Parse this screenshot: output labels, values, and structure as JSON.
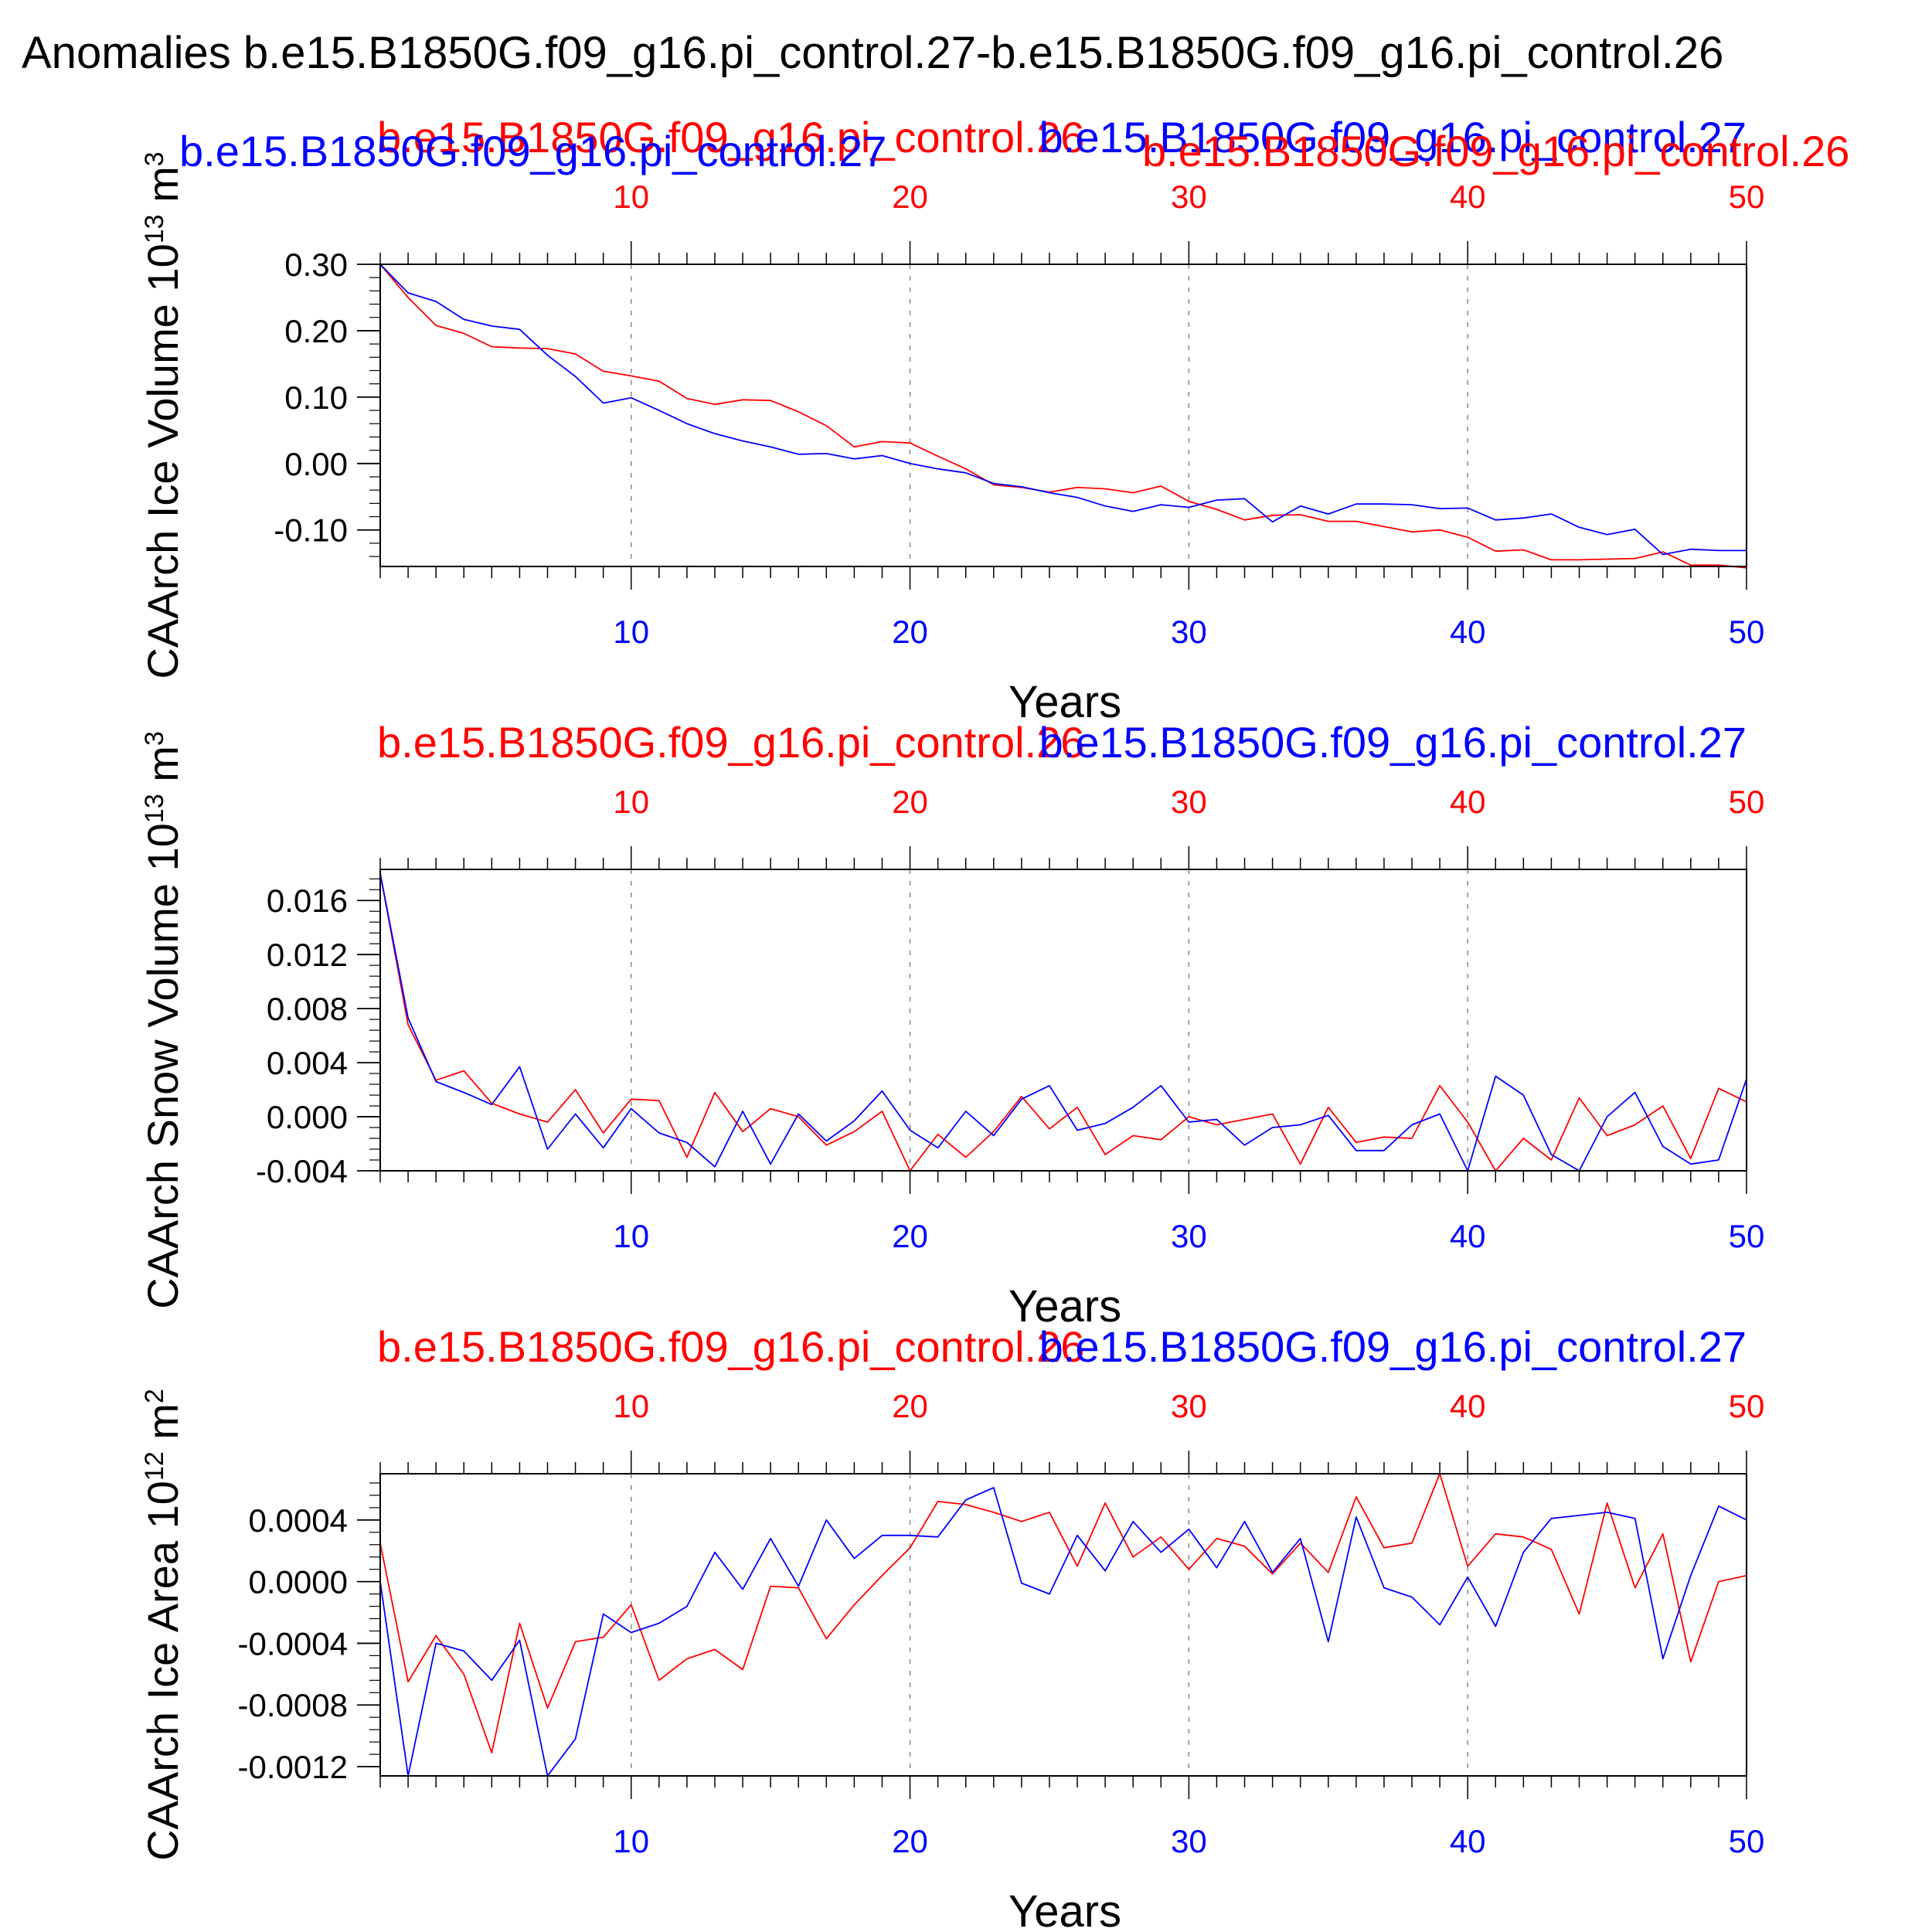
{
  "figure_title": "Anomalies b.e15.B1850G.f09_g16.pi_control.27-b.e15.B1850G.f09_g16.pi_control.26",
  "colors": {
    "run26": "#ff0000",
    "run27": "#0000ff",
    "axis": "#000000",
    "grid": "#888888"
  },
  "chart_data": [
    {
      "type": "line",
      "title": "",
      "xlabel": "Years",
      "ylabel": "CAArch Ice Volume 10<sup>13</sup> m<sup>3</sup>",
      "ylabel_parts": {
        "main": "CAArch Ice Volume 10",
        "exp": "13",
        "unit": "m",
        "unit_exp": "3"
      },
      "top_labels": {
        "left": "b.e15.B1850G.f09_g16.pi_control.26",
        "right": "b.e15.B1850G.f09_g16.pi_control.27",
        "extra_blue": "b.e15.B1850G.f09_g16.pi_control.27",
        "extra_red": "b.e15.B1850G.f09_g16.pi_control.26"
      },
      "xlim": [
        1,
        50
      ],
      "ylim": [
        -0.155,
        0.3
      ],
      "yticks": [
        -0.1,
        0.0,
        0.1,
        0.2,
        0.3
      ],
      "ytick_labels": [
        "-0.10",
        "0.00",
        "0.10",
        "0.20",
        "0.30"
      ],
      "xticks": [
        10,
        20,
        30,
        40,
        50
      ],
      "xtick_labels": [
        "10",
        "20",
        "30",
        "40",
        "50"
      ],
      "grid_x": [
        10,
        20,
        30,
        40
      ],
      "series": [
        {
          "name": "b.e15.B1850G.f09_g16.pi_control.26",
          "color": "#ff0000",
          "values": [
            0.3,
            0.25,
            0.208,
            0.196,
            0.176,
            0.174,
            0.173,
            0.165,
            0.139,
            0.132,
            0.124,
            0.098,
            0.089,
            0.096,
            0.095,
            0.078,
            0.057,
            0.025,
            0.033,
            0.031,
            0.011,
            -0.008,
            -0.032,
            -0.036,
            -0.043,
            -0.036,
            -0.038,
            -0.044,
            -0.034,
            -0.057,
            -0.069,
            -0.085,
            -0.078,
            -0.077,
            -0.087,
            -0.087,
            -0.095,
            -0.103,
            -0.1,
            -0.111,
            -0.132,
            -0.13,
            -0.145,
            -0.145,
            -0.144,
            -0.143,
            -0.133,
            -0.153,
            -0.153,
            -0.157
          ]
        },
        {
          "name": "b.e15.B1850G.f09_g16.pi_control.27",
          "color": "#0000ff",
          "values": [
            0.3,
            0.257,
            0.244,
            0.217,
            0.207,
            0.202,
            0.163,
            0.131,
            0.091,
            0.099,
            0.08,
            0.06,
            0.045,
            0.034,
            0.025,
            0.014,
            0.015,
            0.007,
            0.012,
            0.0,
            -0.008,
            -0.014,
            -0.03,
            -0.035,
            -0.044,
            -0.051,
            -0.064,
            -0.072,
            -0.062,
            -0.066,
            -0.055,
            -0.053,
            -0.088,
            -0.064,
            -0.076,
            -0.061,
            -0.061,
            -0.062,
            -0.068,
            -0.067,
            -0.085,
            -0.082,
            -0.076,
            -0.096,
            -0.107,
            -0.099,
            -0.137,
            -0.129,
            -0.131,
            -0.131
          ]
        }
      ]
    },
    {
      "type": "line",
      "title": "",
      "xlabel": "Years",
      "ylabel_parts": {
        "main": "CAArch Snow Volume 10",
        "exp": "13",
        "unit": "m",
        "unit_exp": "3"
      },
      "top_labels": {
        "left": "b.e15.B1850G.f09_g16.pi_control.26",
        "right": "b.e15.B1850G.f09_g16.pi_control.27"
      },
      "xlim": [
        1,
        50
      ],
      "ylim": [
        -0.004,
        0.0183
      ],
      "yticks": [
        -0.004,
        0.0,
        0.004,
        0.008,
        0.012,
        0.016
      ],
      "ytick_labels": [
        "-0.004",
        "0.000",
        "0.004",
        "0.008",
        "0.012",
        "0.016"
      ],
      "xticks": [
        10,
        20,
        30,
        40,
        50
      ],
      "xtick_labels": [
        "10",
        "20",
        "30",
        "40",
        "50"
      ],
      "grid_x": [
        10,
        20,
        30,
        40
      ],
      "series": [
        {
          "name": "b.e15.B1850G.f09_g16.pi_control.26",
          "color": "#ff0000",
          "values": [
            0.018,
            0.0068,
            0.0027,
            0.0034,
            0.001,
            0.0002,
            -0.0004,
            0.002,
            -0.0012,
            0.0013,
            0.0012,
            -0.003,
            0.0018,
            -0.0011,
            0.0006,
            0.0,
            -0.0021,
            -0.0011,
            0.0004,
            -0.004,
            -0.0013,
            -0.003,
            -0.0011,
            0.0015,
            -0.0009,
            0.0007,
            -0.0028,
            -0.0014,
            -0.0017,
            0.0,
            -0.0006,
            -0.0002,
            0.0002,
            -0.0035,
            0.0007,
            -0.0019,
            -0.0015,
            -0.0016,
            0.0023,
            -0.0004,
            -0.004,
            -0.0016,
            -0.0032,
            0.0014,
            -0.0014,
            -0.0006,
            0.0008,
            -0.0031,
            0.0021,
            0.0011
          ]
        },
        {
          "name": "b.e15.B1850G.f09_g16.pi_control.27",
          "color": "#0000ff",
          "values": [
            0.018,
            0.0073,
            0.0026,
            0.0018,
            0.0009,
            0.0037,
            -0.0024,
            0.0002,
            -0.0023,
            0.0006,
            -0.0012,
            -0.0019,
            -0.0037,
            0.0004,
            -0.0035,
            0.0002,
            -0.0018,
            -0.0003,
            0.0019,
            -0.001,
            -0.0023,
            0.0004,
            -0.0014,
            0.0013,
            0.0023,
            -0.001,
            -0.0005,
            0.0007,
            0.0023,
            -0.0004,
            -0.0002,
            -0.0021,
            -0.0008,
            -0.0006,
            0.0001,
            -0.0025,
            -0.0025,
            -0.0006,
            0.0002,
            -0.004,
            0.003,
            0.0016,
            -0.0028,
            -0.004,
            0.0,
            0.0018,
            -0.0022,
            -0.0035,
            -0.0032,
            0.0028
          ]
        }
      ]
    },
    {
      "type": "line",
      "title": "",
      "xlabel": "Years",
      "ylabel_parts": {
        "main": "CAArch Ice Area 10",
        "exp": "12",
        "unit": "m",
        "unit_exp": "2"
      },
      "top_labels": {
        "left": "b.e15.B1850G.f09_g16.pi_control.26",
        "right": "b.e15.B1850G.f09_g16.pi_control.27"
      },
      "xlim": [
        1,
        50
      ],
      "ylim": [
        -0.00126,
        0.0007
      ],
      "yticks": [
        -0.0012,
        -0.0008,
        -0.0004,
        0.0,
        0.0004
      ],
      "ytick_labels": [
        "-0.0012",
        "-0.0008",
        "-0.0004",
        "0.0000",
        "0.0004"
      ],
      "xticks": [
        10,
        20,
        30,
        40,
        50
      ],
      "xtick_labels": [
        "10",
        "20",
        "30",
        "40",
        "50"
      ],
      "grid_x": [
        10,
        20,
        30,
        40
      ],
      "series": [
        {
          "name": "b.e15.B1850G.f09_g16.pi_control.26",
          "color": "#ff0000",
          "values": [
            0.00025,
            -0.00065,
            -0.00035,
            -0.0006,
            -0.00111,
            -0.00027,
            -0.00082,
            -0.00039,
            -0.00036,
            -0.00015,
            -0.00064,
            -0.0005,
            -0.00044,
            -0.00057,
            -3e-05,
            -4e-05,
            -0.00037,
            -0.00015,
            4e-05,
            0.00022,
            0.00052,
            0.0005,
            0.00045,
            0.00039,
            0.00045,
            0.0001,
            0.00051,
            0.00016,
            0.00029,
            8e-05,
            0.00028,
            0.00023,
            5e-05,
            0.00025,
            6e-05,
            0.00055,
            0.00022,
            0.00025,
            0.0007,
            0.0001,
            0.00031,
            0.00029,
            0.00021,
            -0.00021,
            0.00051,
            -4e-05,
            0.00031,
            -0.00052,
            0.0,
            4e-05
          ]
        },
        {
          "name": "b.e15.B1850G.f09_g16.pi_control.27",
          "color": "#0000ff",
          "values": [
            0.0,
            -0.00126,
            -0.0004,
            -0.00045,
            -0.00064,
            -0.00038,
            -0.00126,
            -0.00102,
            -0.00021,
            -0.00033,
            -0.00027,
            -0.00016,
            0.00019,
            -5e-05,
            0.00028,
            -3e-05,
            0.0004,
            0.00015,
            0.0003,
            0.0003,
            0.00029,
            0.00053,
            0.00061,
            -1e-05,
            -8e-05,
            0.0003,
            7e-05,
            0.00039,
            0.00019,
            0.00034,
            9e-05,
            0.00039,
            6e-05,
            0.00028,
            -0.00039,
            0.00042,
            -4e-05,
            -0.0001,
            -0.00028,
            3e-05,
            -0.00029,
            0.00019,
            0.00041,
            0.00043,
            0.00045,
            0.00041,
            -0.0005,
            4e-05,
            0.00049,
            0.0004
          ]
        }
      ]
    }
  ]
}
